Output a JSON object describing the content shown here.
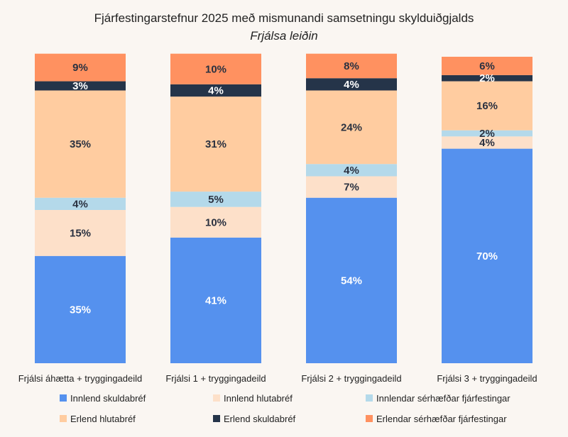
{
  "chart_data": {
    "type": "bar",
    "stacked": true,
    "title": "Fjárfestingarstefnur 2025 með mismunandi samsetningu skylduiðgjalds",
    "subtitle": "Frjálsa leiðin",
    "categories": [
      "Frjálsi áhætta + tryggingadeild",
      "Frjálsi 1 + tryggingadeild",
      "Frjálsi 2 + tryggingadeild",
      "Frjálsi 3 + tryggingadeild"
    ],
    "ylim": [
      0,
      100
    ],
    "grid": false,
    "legend_position": "bottom",
    "series": [
      {
        "name": "Innlend skuldabréf",
        "values": [
          35,
          41,
          54,
          70
        ],
        "labels": [
          "35%",
          "41%",
          "54%",
          "70%"
        ],
        "color": "#5591ee",
        "label_color": "#ffffff"
      },
      {
        "name": "Innlend hlutabréf",
        "values": [
          15,
          10,
          7,
          4
        ],
        "labels": [
          "15%",
          "10%",
          "7%",
          "4%"
        ],
        "color": "#fde0c9",
        "label_color": "#2a3140"
      },
      {
        "name": "Innlendar sérhæfðar fjárfestingar",
        "values": [
          4,
          5,
          4,
          2
        ],
        "labels": [
          "4%",
          "5%",
          "4%",
          "2%"
        ],
        "color": "#b4d9ea",
        "label_color": "#2a3140"
      },
      {
        "name": "Erlend hlutabréf",
        "values": [
          35,
          31,
          24,
          16
        ],
        "labels": [
          "35%",
          "31%",
          "24%",
          "16%"
        ],
        "color": "#ffcca0",
        "label_color": "#2a3140"
      },
      {
        "name": "Erlend skuldabréf",
        "values": [
          3,
          4,
          4,
          2
        ],
        "labels": [
          "3%",
          "4%",
          "4%",
          "2%"
        ],
        "color": "#253449",
        "label_color": "#ffffff"
      },
      {
        "name": "Erlendar sérhæfðar fjárfestingar",
        "values": [
          9,
          10,
          8,
          6
        ],
        "labels": [
          "9%",
          "10%",
          "8%",
          "6%"
        ],
        "color": "#ff9160",
        "label_color": "#2a3140"
      }
    ]
  }
}
